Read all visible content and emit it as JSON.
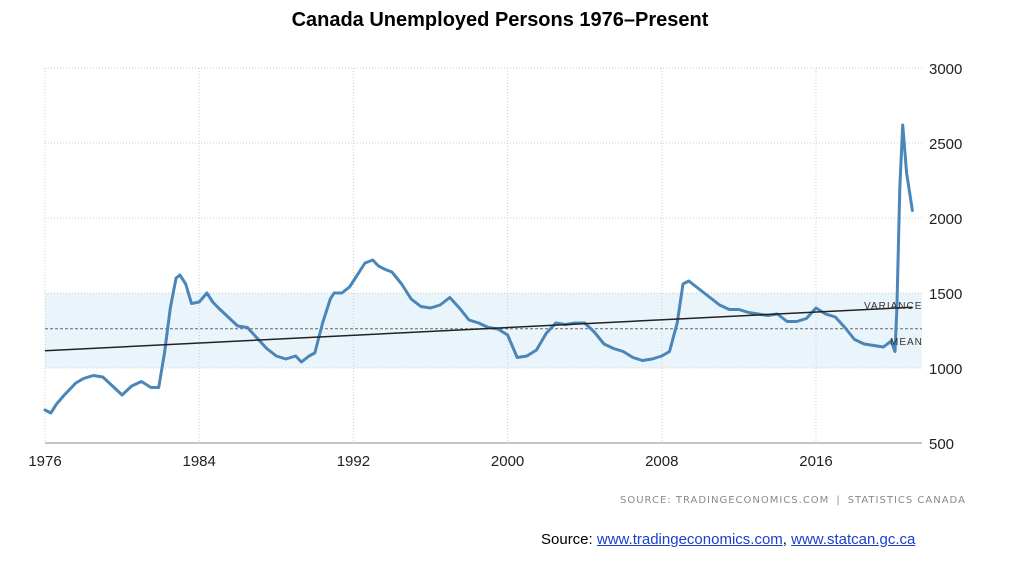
{
  "title": "Canada Unemployed Persons 1976–Present",
  "source_small": {
    "left": "SOURCE: TRADINGECONOMICS.COM",
    "sep": "|",
    "right": "STATISTICS CANADA"
  },
  "source_line": {
    "prefix": "Source: ",
    "link1": "www.tradingeconomics.com",
    "comma": ", ",
    "link2": "www.statcan.gc.ca"
  },
  "colors": {
    "series": "#4a86b8",
    "band": "#eaf4fb",
    "trend": "#222222",
    "mean": "#666666",
    "grid": "#cccccc"
  },
  "chart_data": {
    "type": "line",
    "title": "Canada Unemployed Persons 1976–Present",
    "xlabel": "",
    "ylabel": "",
    "xlim": [
      1976,
      2021.5
    ],
    "ylim": [
      500,
      3000
    ],
    "x_ticks": [
      1976,
      1984,
      1992,
      2000,
      2008,
      2016
    ],
    "y_ticks": [
      500,
      1000,
      1500,
      2000,
      2500,
      3000
    ],
    "y_axis_side": "right",
    "grid": true,
    "series": [
      {
        "x": [
          1976.0,
          1976.3,
          1976.6,
          1977.0,
          1977.3,
          1977.6,
          1978.0,
          1978.5,
          1979.0,
          1979.5,
          1980.0,
          1980.5,
          1981.0,
          1981.5,
          1981.9,
          1982.2,
          1982.5,
          1982.8,
          1983.0,
          1983.3,
          1983.6,
          1984.0,
          1984.4,
          1984.7,
          1985.0,
          1985.5,
          1986.0,
          1986.5,
          1987.0,
          1987.5,
          1988.0,
          1988.5,
          1989.0,
          1989.3,
          1989.7,
          1990.0,
          1990.4,
          1990.8,
          1991.0,
          1991.4,
          1991.8,
          1992.2,
          1992.6,
          1993.0,
          1993.3,
          1993.6,
          1994.0,
          1994.5,
          1995.0,
          1995.5,
          1996.0,
          1996.5,
          1997.0,
          1997.5,
          1998.0,
          1998.5,
          1999.0,
          1999.5,
          2000.0,
          2000.5,
          2001.0,
          2001.5,
          2002.0,
          2002.5,
          2003.0,
          2003.5,
          2004.0,
          2004.5,
          2005.0,
          2005.5,
          2006.0,
          2006.5,
          2007.0,
          2007.5,
          2008.0,
          2008.4,
          2008.8,
          2009.1,
          2009.4,
          2009.8,
          2010.2,
          2010.6,
          2011.0,
          2011.5,
          2012.0,
          2012.5,
          2013.0,
          2013.5,
          2014.0,
          2014.5,
          2015.0,
          2015.5,
          2016.0,
          2016.5,
          2017.0,
          2017.5,
          2018.0,
          2018.5,
          2019.0,
          2019.5,
          2019.9,
          2020.1,
          2020.2,
          2020.35,
          2020.5,
          2020.7,
          2021.0
        ],
        "values": [
          720,
          700,
          760,
          820,
          860,
          900,
          930,
          950,
          940,
          880,
          820,
          880,
          910,
          870,
          870,
          1100,
          1400,
          1600,
          1620,
          1560,
          1430,
          1440,
          1500,
          1440,
          1400,
          1340,
          1280,
          1270,
          1200,
          1130,
          1080,
          1060,
          1080,
          1040,
          1080,
          1100,
          1300,
          1460,
          1500,
          1500,
          1540,
          1620,
          1700,
          1720,
          1680,
          1660,
          1640,
          1560,
          1460,
          1410,
          1400,
          1420,
          1470,
          1400,
          1320,
          1300,
          1270,
          1260,
          1220,
          1070,
          1080,
          1120,
          1230,
          1300,
          1290,
          1300,
          1300,
          1240,
          1160,
          1130,
          1110,
          1070,
          1050,
          1060,
          1080,
          1110,
          1300,
          1560,
          1580,
          1540,
          1500,
          1460,
          1420,
          1390,
          1390,
          1370,
          1360,
          1350,
          1360,
          1310,
          1310,
          1330,
          1400,
          1360,
          1340,
          1270,
          1190,
          1160,
          1150,
          1140,
          1180,
          1110,
          1400,
          2200,
          2620,
          2300,
          2050
        ]
      }
    ],
    "annotations": [
      {
        "label": "VARIANCE",
        "kind": "shaded band",
        "range": [
          1000,
          1500
        ]
      },
      {
        "label": "MEAN",
        "kind": "dashed line",
        "value": 1262
      },
      {
        "label": "",
        "kind": "trend line",
        "from": [
          1976,
          1115
        ],
        "to": [
          2021,
          1405
        ]
      }
    ]
  }
}
